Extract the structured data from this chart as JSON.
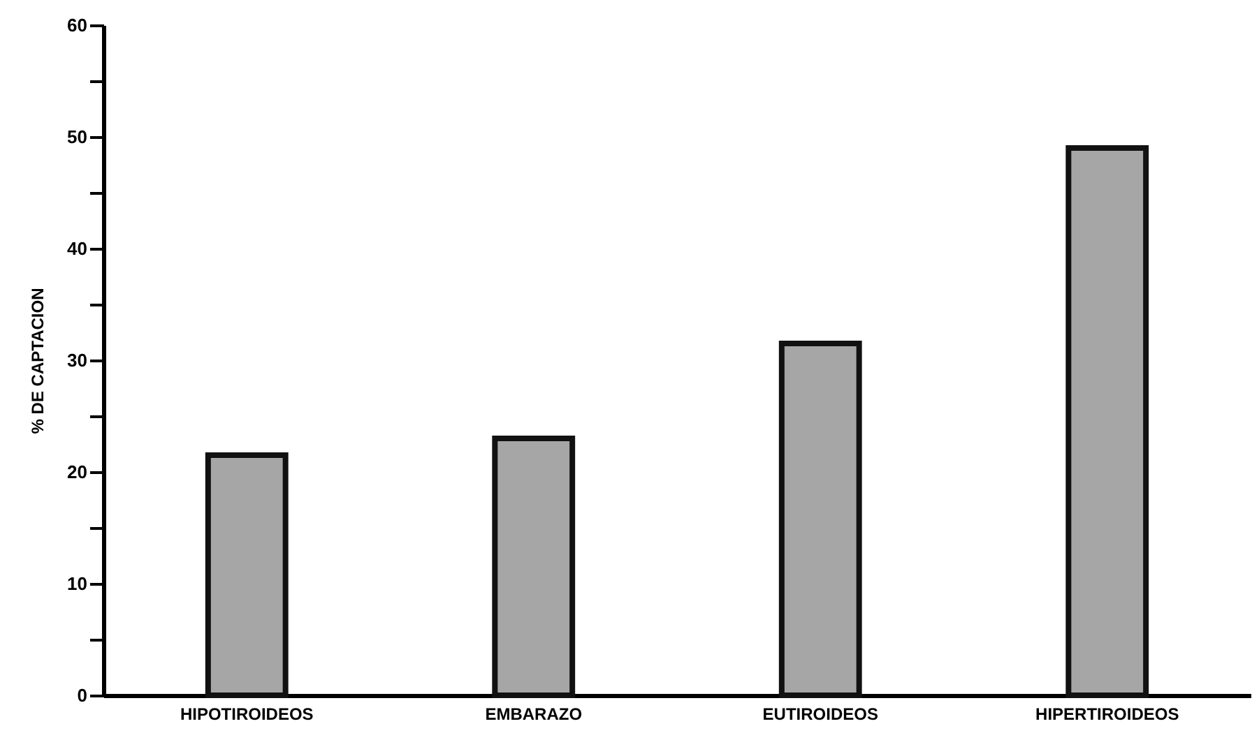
{
  "chart_data": {
    "type": "bar",
    "ylabel": "% DE CAPTACION",
    "categories": [
      "HIPOTIROIDEOS",
      "EMBARAZO",
      "EUTIROIDEOS",
      "HIPERTIROIDEOS"
    ],
    "values": [
      21.5,
      23,
      31.5,
      49
    ],
    "color": "#a6a6a6",
    "ylim": [
      0,
      60
    ],
    "yticks": [
      0,
      {
        "value": 5,
        "label": null
      },
      10,
      {
        "value": 15,
        "label": null
      },
      20,
      {
        "value": 25,
        "label": null
      },
      30,
      {
        "value": 35,
        "label": null
      },
      40,
      {
        "value": 45,
        "label": null
      },
      50,
      {
        "value": 55,
        "label": null
      },
      60
    ],
    "grid": false
  }
}
